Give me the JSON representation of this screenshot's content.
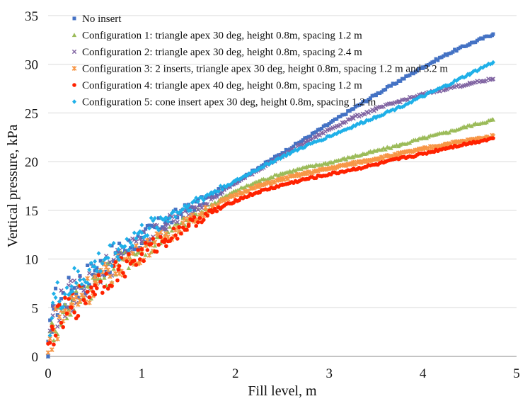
{
  "chart_data": {
    "type": "scatter",
    "title": "",
    "xlabel": "Fill level, m",
    "ylabel": "Vertical pressure, kPa",
    "xlim": [
      0,
      5
    ],
    "ylim": [
      0,
      35
    ],
    "xticks": [
      "0",
      "1",
      "2",
      "3",
      "4",
      "5"
    ],
    "yticks": [
      "0",
      "5",
      "10",
      "15",
      "20",
      "25",
      "30",
      "35"
    ],
    "grid": "horizontal",
    "legend_position": "top-left",
    "series": [
      {
        "name": "No insert",
        "marker": "square",
        "color": "#4472C4",
        "x": [
          0.05,
          0.25,
          0.5,
          0.75,
          1.0,
          1.25,
          1.5,
          1.75,
          2.0,
          2.25,
          2.5,
          2.75,
          3.0,
          3.25,
          3.5,
          3.75,
          4.0,
          4.25,
          4.5,
          4.75
        ],
        "y": [
          5.2,
          6.8,
          8.8,
          10.5,
          12.2,
          13.8,
          15.2,
          16.5,
          17.9,
          19.4,
          20.9,
          22.4,
          23.9,
          25.4,
          26.9,
          28.3,
          29.7,
          31.0,
          32.1,
          33.1
        ]
      },
      {
        "name": "Configuration 1: triangle apex 30 deg, height 0.8m, spacing 1.2 m",
        "marker": "triangle",
        "color": "#9BBB59",
        "x": [
          0.05,
          0.25,
          0.5,
          0.75,
          1.0,
          1.25,
          1.5,
          1.75,
          2.0,
          2.25,
          2.5,
          2.75,
          3.0,
          3.25,
          3.5,
          3.75,
          4.0,
          4.25,
          4.5,
          4.75
        ],
        "y": [
          3.2,
          5.5,
          7.8,
          9.4,
          11.0,
          12.5,
          14.0,
          15.6,
          17.0,
          18.0,
          18.8,
          19.4,
          19.9,
          20.5,
          21.1,
          21.7,
          22.4,
          23.0,
          23.7,
          24.3
        ]
      },
      {
        "name": "Configuration 2: triangle apex 30 deg, height 0.8m, spacing 2.4 m",
        "marker": "x",
        "color": "#8064A2",
        "x": [
          0.05,
          0.25,
          0.5,
          0.75,
          1.0,
          1.25,
          1.5,
          1.75,
          2.0,
          2.25,
          2.5,
          2.75,
          3.0,
          3.25,
          3.5,
          3.75,
          4.0,
          4.25,
          4.5,
          4.75
        ],
        "y": [
          4.2,
          6.2,
          8.3,
          10.1,
          11.8,
          13.5,
          15.0,
          16.3,
          17.8,
          19.2,
          20.6,
          22.0,
          23.3,
          24.5,
          25.4,
          26.2,
          26.9,
          27.5,
          28.0,
          28.5
        ]
      },
      {
        "name": "Configuration 3: 2 inserts, triangle apex 30 deg, height 0.8m, spacing 1.2 m and 3.2 m",
        "marker": "star",
        "color": "#F79646",
        "x": [
          0.05,
          0.25,
          0.5,
          0.75,
          1.0,
          1.25,
          1.5,
          1.75,
          2.0,
          2.25,
          2.5,
          2.75,
          3.0,
          3.25,
          3.5,
          3.75,
          4.0,
          4.25,
          4.5,
          4.75
        ],
        "y": [
          3.0,
          5.3,
          7.6,
          9.2,
          10.8,
          12.3,
          13.8,
          15.3,
          16.6,
          17.5,
          18.2,
          18.8,
          19.3,
          19.8,
          20.3,
          20.8,
          21.3,
          21.8,
          22.2,
          22.6
        ]
      },
      {
        "name": "Configuration 4: triangle apex 40 deg, height 0.8m, spacing 1.2 m",
        "marker": "circle",
        "color": "#FF2200",
        "x": [
          0.05,
          0.25,
          0.5,
          0.75,
          1.0,
          1.25,
          1.5,
          1.75,
          2.0,
          2.25,
          2.5,
          2.75,
          3.0,
          3.25,
          3.5,
          3.75,
          4.0,
          4.25,
          4.5,
          4.75
        ],
        "y": [
          2.8,
          5.0,
          7.3,
          8.9,
          10.5,
          12.0,
          13.5,
          14.8,
          16.0,
          16.9,
          17.6,
          18.2,
          18.7,
          19.2,
          19.7,
          20.3,
          20.8,
          21.4,
          21.9,
          22.4
        ]
      },
      {
        "name": "Configuration 5: cone insert apex 30 deg, height 0.8m, spacing 1.2 m",
        "marker": "diamond",
        "color": "#1FB0E8",
        "x": [
          0.05,
          0.25,
          0.5,
          0.75,
          1.0,
          1.25,
          1.5,
          1.75,
          2.0,
          2.25,
          2.5,
          2.75,
          3.0,
          3.25,
          3.5,
          3.75,
          4.0,
          4.25,
          4.5,
          4.75
        ],
        "y": [
          5.5,
          7.2,
          9.2,
          11.0,
          12.7,
          14.2,
          15.5,
          16.8,
          18.0,
          19.3,
          20.5,
          21.6,
          22.6,
          23.6,
          24.6,
          25.6,
          26.7,
          27.8,
          29.0,
          30.2
        ]
      }
    ]
  }
}
